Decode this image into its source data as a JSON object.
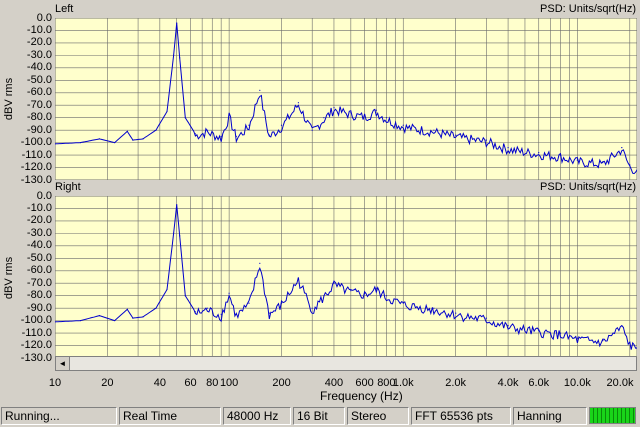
{
  "panels": {
    "top": {
      "channel_label": "Left",
      "psd_label": "PSD: Units/sqrt(Hz)",
      "ylabel": "dBV rms"
    },
    "bottom": {
      "channel_label": "Right",
      "psd_label": "PSD: Units/sqrt(Hz)",
      "ylabel": "dBV rms"
    }
  },
  "y_ticks": [
    "0.0",
    "-10.0",
    "-20.0",
    "-30.0",
    "-40.0",
    "-50.0",
    "-60.0",
    "-70.0",
    "-80.0",
    "-90.0",
    "-100.0",
    "-110.0",
    "-120.0",
    "-130.0"
  ],
  "x_ticks": [
    "10",
    "20",
    "40",
    "60",
    "80",
    "100",
    "200",
    "400",
    "600",
    "800",
    "1.0k",
    "2.0k",
    "4.0k",
    "6.0k",
    "10.0k",
    "20.0k"
  ],
  "x_axis_title": "Frequency (Hz)",
  "scrollbar": {
    "left_arrow": "◄"
  },
  "status": {
    "state": "Running...",
    "mode": "Real Time",
    "sample_rate": "48000 Hz",
    "bits": "16 Bit",
    "channels": "Stereo",
    "fft": "FFT 65536 pts",
    "window": "Hanning"
  },
  "colors": {
    "plot_bg": "#ffffcc",
    "trace": "#0000cc",
    "grid": "#6b6b6b"
  },
  "chart_data": {
    "type": "line",
    "x_scale": "log",
    "xlim": [
      10,
      22000
    ],
    "ylim": [
      -130,
      0
    ],
    "xlabel": "Frequency (Hz)",
    "ylabel": "dBV rms",
    "series": [
      {
        "name": "Left",
        "points": [
          [
            10,
            -101
          ],
          [
            14,
            -100
          ],
          [
            18,
            -97
          ],
          [
            22,
            -100
          ],
          [
            26,
            -91
          ],
          [
            28,
            -98
          ],
          [
            32,
            -97
          ],
          [
            38,
            -90
          ],
          [
            44,
            -75
          ],
          [
            48,
            -30
          ],
          [
            50,
            -4
          ],
          [
            52,
            -32
          ],
          [
            56,
            -80
          ],
          [
            64,
            -93
          ],
          [
            75,
            -90
          ],
          [
            90,
            -95
          ],
          [
            100,
            -78
          ],
          [
            110,
            -95
          ],
          [
            130,
            -86
          ],
          [
            150,
            -58
          ],
          [
            170,
            -94
          ],
          [
            200,
            -86
          ],
          [
            250,
            -68
          ],
          [
            300,
            -90
          ],
          [
            350,
            -80
          ],
          [
            400,
            -72
          ],
          [
            500,
            -76
          ],
          [
            600,
            -78
          ],
          [
            700,
            -74
          ],
          [
            800,
            -80
          ],
          [
            1000,
            -86
          ],
          [
            1500,
            -90
          ],
          [
            2000,
            -94
          ],
          [
            3000,
            -98
          ],
          [
            4000,
            -104
          ],
          [
            6000,
            -108
          ],
          [
            8000,
            -110
          ],
          [
            10000,
            -114
          ],
          [
            14000,
            -116
          ],
          [
            18000,
            -104
          ],
          [
            20000,
            -118
          ],
          [
            22000,
            -122
          ]
        ]
      },
      {
        "name": "Right",
        "points": [
          [
            10,
            -101
          ],
          [
            14,
            -100
          ],
          [
            18,
            -96
          ],
          [
            22,
            -100
          ],
          [
            26,
            -91
          ],
          [
            28,
            -98
          ],
          [
            32,
            -97
          ],
          [
            38,
            -90
          ],
          [
            44,
            -75
          ],
          [
            48,
            -30
          ],
          [
            50,
            -7
          ],
          [
            52,
            -32
          ],
          [
            56,
            -80
          ],
          [
            64,
            -93
          ],
          [
            75,
            -90
          ],
          [
            90,
            -95
          ],
          [
            100,
            -78
          ],
          [
            110,
            -95
          ],
          [
            130,
            -86
          ],
          [
            150,
            -54
          ],
          [
            170,
            -94
          ],
          [
            200,
            -86
          ],
          [
            250,
            -66
          ],
          [
            300,
            -90
          ],
          [
            350,
            -80
          ],
          [
            400,
            -70
          ],
          [
            500,
            -76
          ],
          [
            600,
            -78
          ],
          [
            700,
            -74
          ],
          [
            800,
            -80
          ],
          [
            1000,
            -86
          ],
          [
            1500,
            -90
          ],
          [
            2000,
            -94
          ],
          [
            3000,
            -98
          ],
          [
            4000,
            -104
          ],
          [
            6000,
            -108
          ],
          [
            8000,
            -110
          ],
          [
            10000,
            -114
          ],
          [
            14000,
            -116
          ],
          [
            18000,
            -104
          ],
          [
            20000,
            -118
          ],
          [
            22000,
            -122
          ]
        ]
      }
    ]
  }
}
